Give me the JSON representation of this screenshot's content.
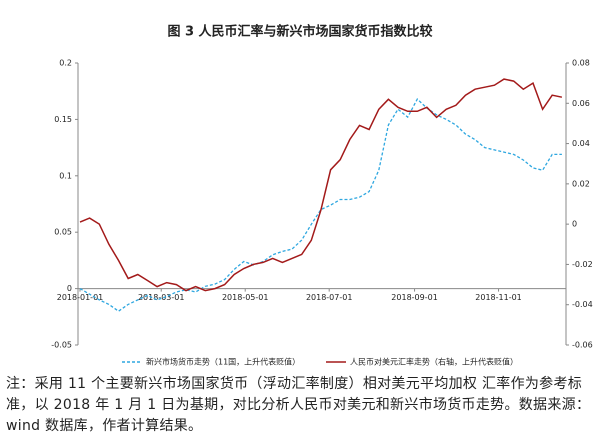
{
  "chart_data": {
    "type": "line",
    "title": "图 3 人民币汇率与新兴市场国家货币指数比较",
    "x": [
      "2018-01-01",
      "2018-01-08",
      "2018-01-15",
      "2018-01-22",
      "2018-01-29",
      "2018-02-05",
      "2018-02-12",
      "2018-02-19",
      "2018-02-26",
      "2018-03-05",
      "2018-03-12",
      "2018-03-19",
      "2018-03-26",
      "2018-04-02",
      "2018-04-09",
      "2018-04-16",
      "2018-04-23",
      "2018-04-30",
      "2018-05-07",
      "2018-05-14",
      "2018-05-21",
      "2018-05-28",
      "2018-06-04",
      "2018-06-11",
      "2018-06-18",
      "2018-06-25",
      "2018-07-02",
      "2018-07-09",
      "2018-07-16",
      "2018-07-23",
      "2018-07-30",
      "2018-08-06",
      "2018-08-13",
      "2018-08-20",
      "2018-08-27",
      "2018-09-03",
      "2018-09-10",
      "2018-09-17",
      "2018-09-24",
      "2018-10-01",
      "2018-10-08",
      "2018-10-15",
      "2018-10-22",
      "2018-10-29",
      "2018-11-05",
      "2018-11-12",
      "2018-11-19",
      "2018-11-26",
      "2018-12-03",
      "2018-12-10",
      "2018-12-17"
    ],
    "xlim": [
      "2018-01-01",
      "2018-12-20"
    ],
    "xticks": [
      "2018-01-01",
      "2018-03-01",
      "2018-05-01",
      "2018-07-01",
      "2018-09-01",
      "2018-11-01"
    ],
    "ylim": [
      -0.05,
      0.2
    ],
    "yticks": [
      -0.05,
      0,
      0.05,
      0.1,
      0.15,
      0.2
    ],
    "y2lim": [
      -0.06,
      0.08
    ],
    "y2ticks": [
      -0.06,
      -0.04,
      -0.02,
      0,
      0.02,
      0.04,
      0.06,
      0.08
    ],
    "series": [
      {
        "name": "新兴市场货币走势（11国，上升代表贬值）",
        "color": "#2ea7e0",
        "dashed": true,
        "values": [
          0,
          -0.005,
          -0.01,
          -0.014,
          -0.02,
          -0.014,
          -0.01,
          -0.006,
          -0.01,
          -0.007,
          -0.003,
          -0.001,
          -0.003,
          0.002,
          0.004,
          0.008,
          0.017,
          0.024,
          0.021,
          0.024,
          0.03,
          0.033,
          0.035,
          0.043,
          0.057,
          0.07,
          0.074,
          0.079,
          0.079,
          0.081,
          0.086,
          0.105,
          0.145,
          0.159,
          0.152,
          0.168,
          0.16,
          0.154,
          0.15,
          0.145,
          0.137,
          0.132,
          0.125,
          0.123,
          0.121,
          0.119,
          0.114,
          0.107,
          0.105,
          0.119,
          0.119
        ]
      },
      {
        "name": "人民币对美元汇率走势（右轴，上升代表贬值）",
        "color": "#a31a1a",
        "axis": "y2",
        "values": [
          0.001,
          0.003,
          0,
          -0.01,
          -0.018,
          -0.027,
          -0.025,
          -0.028,
          -0.031,
          -0.029,
          -0.03,
          -0.033,
          -0.031,
          -0.033,
          -0.032,
          -0.03,
          -0.025,
          -0.022,
          -0.02,
          -0.019,
          -0.017,
          -0.019,
          -0.017,
          -0.015,
          -0.008,
          0.007,
          0.027,
          0.032,
          0.042,
          0.049,
          0.047,
          0.057,
          0.062,
          0.058,
          0.056,
          0.056,
          0.058,
          0.053,
          0.057,
          0.059,
          0.064,
          0.067,
          0.068,
          0.069,
          0.072,
          0.071,
          0.067,
          0.07,
          0.057,
          0.064,
          0.063
        ]
      }
    ]
  },
  "note": "注：采用 11 个主要新兴市场国家货币（浮动汇率制度）相对美元平均加权 汇率作为参考标准，以 2018 年 1 月 1 日为基期，对比分析人民币对美元和新兴市场货币走势。数据来源：wind 数据库，作者计算结果。"
}
